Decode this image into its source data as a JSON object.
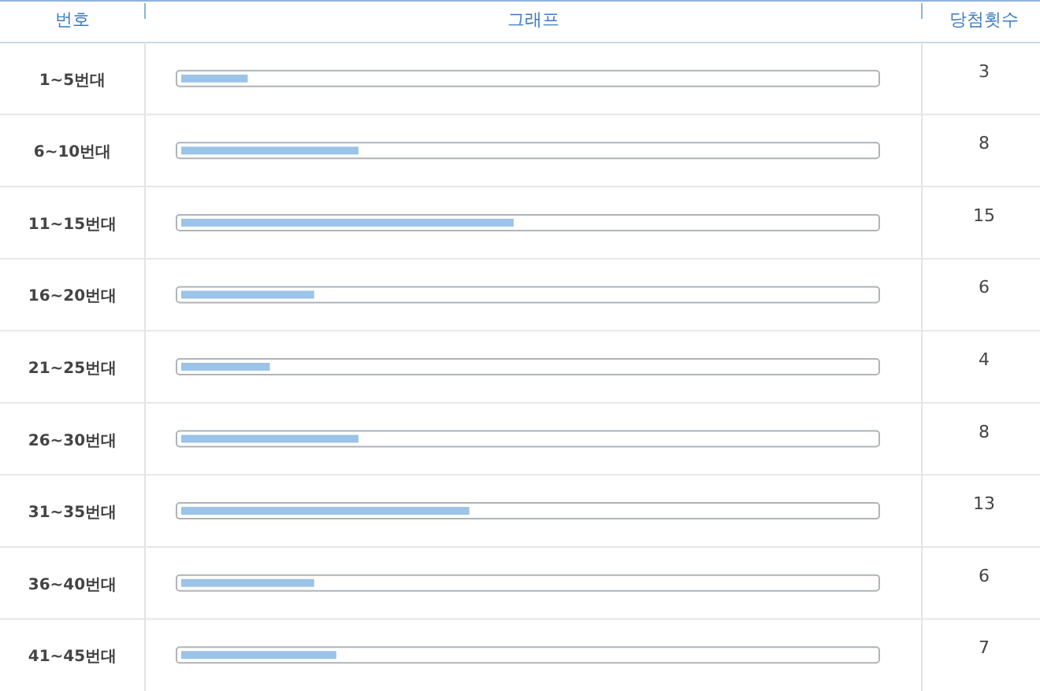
{
  "chart_data": {
    "type": "bar",
    "orientation": "horizontal",
    "ylabel": "번호",
    "xlabel": "그래프",
    "annotations": [
      "당첨횟수"
    ],
    "categories": [
      "1~5번대",
      "6~10번대",
      "11~15번대",
      "16~20번대",
      "21~25번대",
      "26~30번대",
      "31~35번대",
      "36~40번대",
      "41~45번대"
    ],
    "values": [
      3,
      8,
      15,
      6,
      4,
      8,
      13,
      6,
      7
    ],
    "color": "#9cc3e8",
    "xlim": [
      0,
      31.5
    ],
    "data_labels": true
  }
}
